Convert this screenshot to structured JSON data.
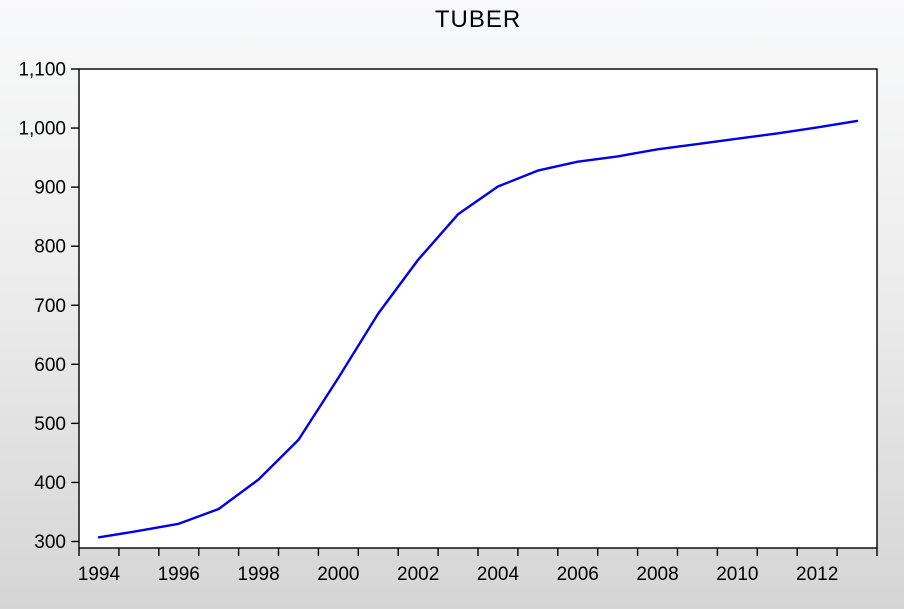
{
  "window": {
    "background_top": "#f8f9fa",
    "background_bottom": "#d5d5d5"
  },
  "chart_data": {
    "type": "line",
    "title": "TUBER",
    "xlabel": "",
    "ylabel": "",
    "grid": false,
    "legend": "none",
    "plot_background": "#ffffff",
    "frame_color": "#000000",
    "ylim": [
      300,
      1100
    ],
    "xlim": [
      1994,
      2013
    ],
    "x": [
      1994,
      1995,
      1996,
      1997,
      1998,
      1999,
      2000,
      2001,
      2002,
      2003,
      2004,
      2005,
      2006,
      2007,
      2008,
      2009,
      2010,
      2011,
      2012,
      2013
    ],
    "series": [
      {
        "name": "TUBER",
        "color": "#0000e6",
        "values": [
          307,
          318,
          330,
          355,
          405,
          472,
          577,
          686,
          777,
          854,
          901,
          928,
          943,
          952,
          964,
          973,
          982,
          991,
          1001,
          1012
        ]
      }
    ],
    "yticks": {
      "values": [
        1100,
        1000,
        900,
        800,
        700,
        600,
        500,
        400,
        300
      ],
      "labels": [
        "1,100",
        "1,000",
        "900",
        "800",
        "700",
        "600",
        "500",
        "400",
        "300"
      ]
    },
    "xticks": {
      "minor_every_year": true,
      "label_years": [
        1994,
        1996,
        1998,
        2000,
        2002,
        2004,
        2006,
        2008,
        2010,
        2012
      ],
      "labels": [
        "1994",
        "1996",
        "1998",
        "2000",
        "2002",
        "2004",
        "2006",
        "2008",
        "2010",
        "2012"
      ]
    }
  }
}
